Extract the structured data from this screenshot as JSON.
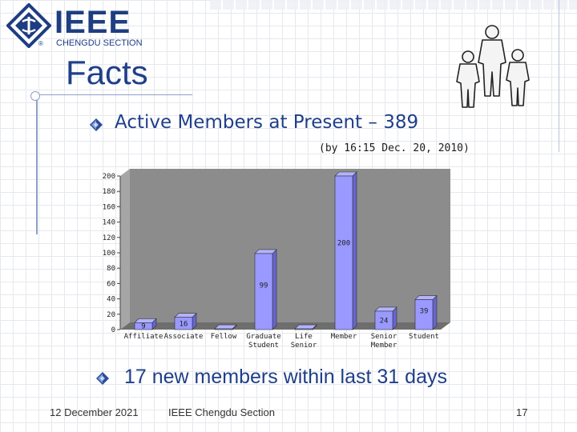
{
  "logo": {
    "name": "IEEE",
    "subtitle": "CHENGDU SECTION",
    "reg_mark": "®"
  },
  "slide": {
    "title": "Facts",
    "bullet1": "Active Members at Present – 389",
    "note": "(by 16:15 Dec. 20, 2010)",
    "bullet2": "17 new members within last 31 days"
  },
  "footer": {
    "date": "12 December 2021",
    "org": "IEEE Chengdu Section",
    "page": "17"
  },
  "colors": {
    "title": "#1f3f8a",
    "bar_front": "#9999ff",
    "bar_side": "#6666cc",
    "wall": "#8c8c8c"
  },
  "chart_data": {
    "type": "bar",
    "categories": [
      [
        "Affiliate"
      ],
      [
        "Associate"
      ],
      [
        "Fellow"
      ],
      [
        "Graduate",
        "Student"
      ],
      [
        "Life",
        "Senior"
      ],
      [
        "Member"
      ],
      [
        "Senior",
        "Member"
      ],
      [
        "Student"
      ]
    ],
    "values": [
      9,
      16,
      1,
      99,
      1,
      200,
      24,
      39
    ],
    "labels": [
      "9",
      "16",
      "",
      "99",
      "",
      "200",
      "24",
      "39"
    ],
    "yticks": [
      "0",
      "20",
      "40",
      "60",
      "80",
      "100",
      "120",
      "140",
      "160",
      "180",
      "200"
    ],
    "ylim": [
      0,
      200
    ],
    "grid": false,
    "legend": "none"
  }
}
